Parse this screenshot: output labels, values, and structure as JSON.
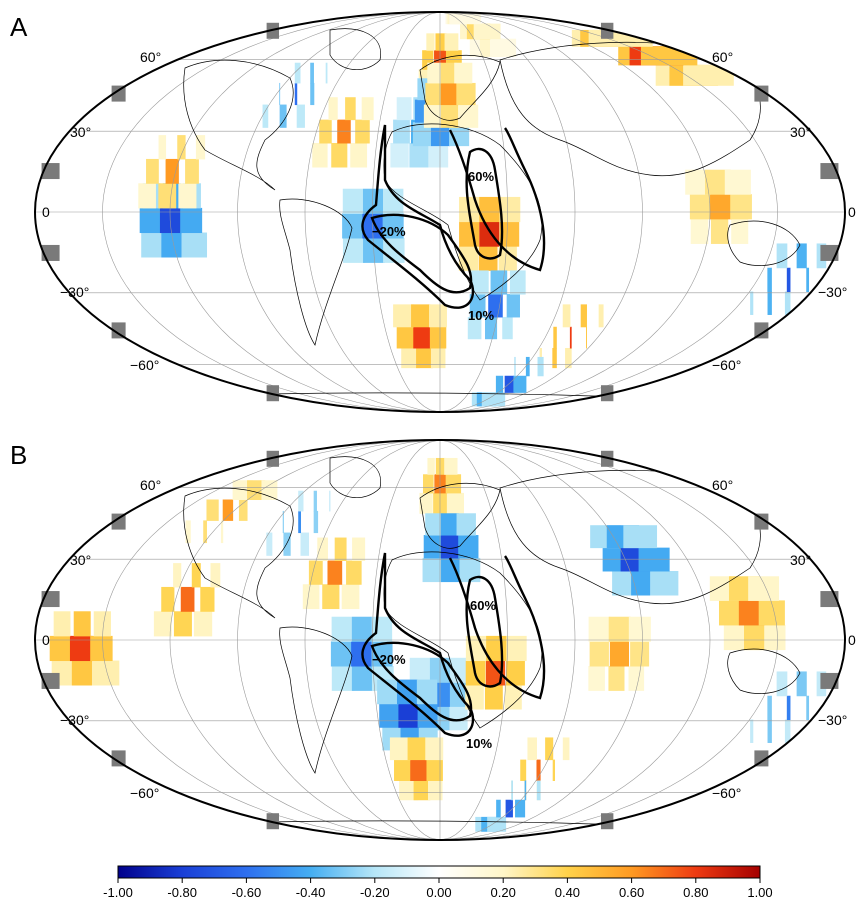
{
  "panels": [
    {
      "letter": "A",
      "latitude_labels": [
        "60°",
        "30°",
        "0",
        "−30°",
        "−60°"
      ],
      "contour_labels": [
        "60%",
        "−20%",
        "10%"
      ],
      "anomaly_cells": [
        {
          "lon": -120,
          "lat": -3,
          "value": -0.75
        },
        {
          "lon": -122,
          "lat": 15,
          "value": 0.6
        },
        {
          "lon": -80,
          "lat": 45,
          "value": -0.6
        },
        {
          "lon": -47,
          "lat": 30,
          "value": 0.65
        },
        {
          "lon": -30,
          "lat": -5,
          "value": -0.6
        },
        {
          "lon": -10,
          "lat": 30,
          "value": -0.4
        },
        {
          "lon": 0,
          "lat": 60,
          "value": 0.75
        },
        {
          "lon": 0,
          "lat": 38,
          "value": -0.85
        },
        {
          "lon": 5,
          "lat": 45,
          "value": 0.6
        },
        {
          "lon": 22,
          "lat": -8,
          "value": 0.85
        },
        {
          "lon": 28,
          "lat": -35,
          "value": -0.6
        },
        {
          "lon": -10,
          "lat": -48,
          "value": 0.8
        },
        {
          "lon": 75,
          "lat": -48,
          "value": 0.8
        },
        {
          "lon": 62,
          "lat": -70,
          "value": -0.7
        },
        {
          "lon": 125,
          "lat": 2,
          "value": 0.55
        },
        {
          "lon": 155,
          "lat": 62,
          "value": 0.8
        },
        {
          "lon": 165,
          "lat": -25,
          "value": -0.7
        },
        {
          "lon": 40,
          "lat": 75,
          "value": 0.35
        }
      ]
    },
    {
      "letter": "B",
      "latitude_labels": [
        "60°",
        "30°",
        "0",
        "−30°",
        "−60°"
      ],
      "contour_labels": [
        "60%",
        "−20%",
        "10%"
      ],
      "anomaly_cells": [
        {
          "lon": -160,
          "lat": -3,
          "value": 0.8
        },
        {
          "lon": -125,
          "lat": 50,
          "value": 0.6
        },
        {
          "lon": -78,
          "lat": 45,
          "value": -0.5
        },
        {
          "lon": -115,
          "lat": 15,
          "value": 0.7
        },
        {
          "lon": -50,
          "lat": 25,
          "value": 0.65
        },
        {
          "lon": -35,
          "lat": -5,
          "value": -0.6
        },
        {
          "lon": 0,
          "lat": 62,
          "value": 0.65
        },
        {
          "lon": 5,
          "lat": 35,
          "value": -0.75
        },
        {
          "lon": 0,
          "lat": -20,
          "value": -0.5
        },
        {
          "lon": -15,
          "lat": -28,
          "value": -0.8
        },
        {
          "lon": 25,
          "lat": -12,
          "value": 0.75
        },
        {
          "lon": -12,
          "lat": -50,
          "value": 0.7
        },
        {
          "lon": 58,
          "lat": -50,
          "value": 0.7
        },
        {
          "lon": 58,
          "lat": -68,
          "value": -0.7
        },
        {
          "lon": 95,
          "lat": 30,
          "value": -0.75
        },
        {
          "lon": 80,
          "lat": -5,
          "value": 0.55
        },
        {
          "lon": 140,
          "lat": 10,
          "value": 0.65
        },
        {
          "lon": 165,
          "lat": -25,
          "value": -0.55
        }
      ]
    }
  ],
  "colorbar": {
    "ticks": [
      "-1.00",
      "-0.80",
      "-0.60",
      "-0.40",
      "-0.20",
      "0.00",
      "0.20",
      "0.40",
      "0.60",
      "0.80",
      "1.00"
    ],
    "range": [
      -1,
      1
    ],
    "colors": [
      "#00008b",
      "#1a3fd6",
      "#2e6fef",
      "#45aef2",
      "#b6e6f7",
      "#ffffff",
      "#fff6c8",
      "#ffd24a",
      "#ff9a22",
      "#ee3b12",
      "#a50000"
    ]
  }
}
